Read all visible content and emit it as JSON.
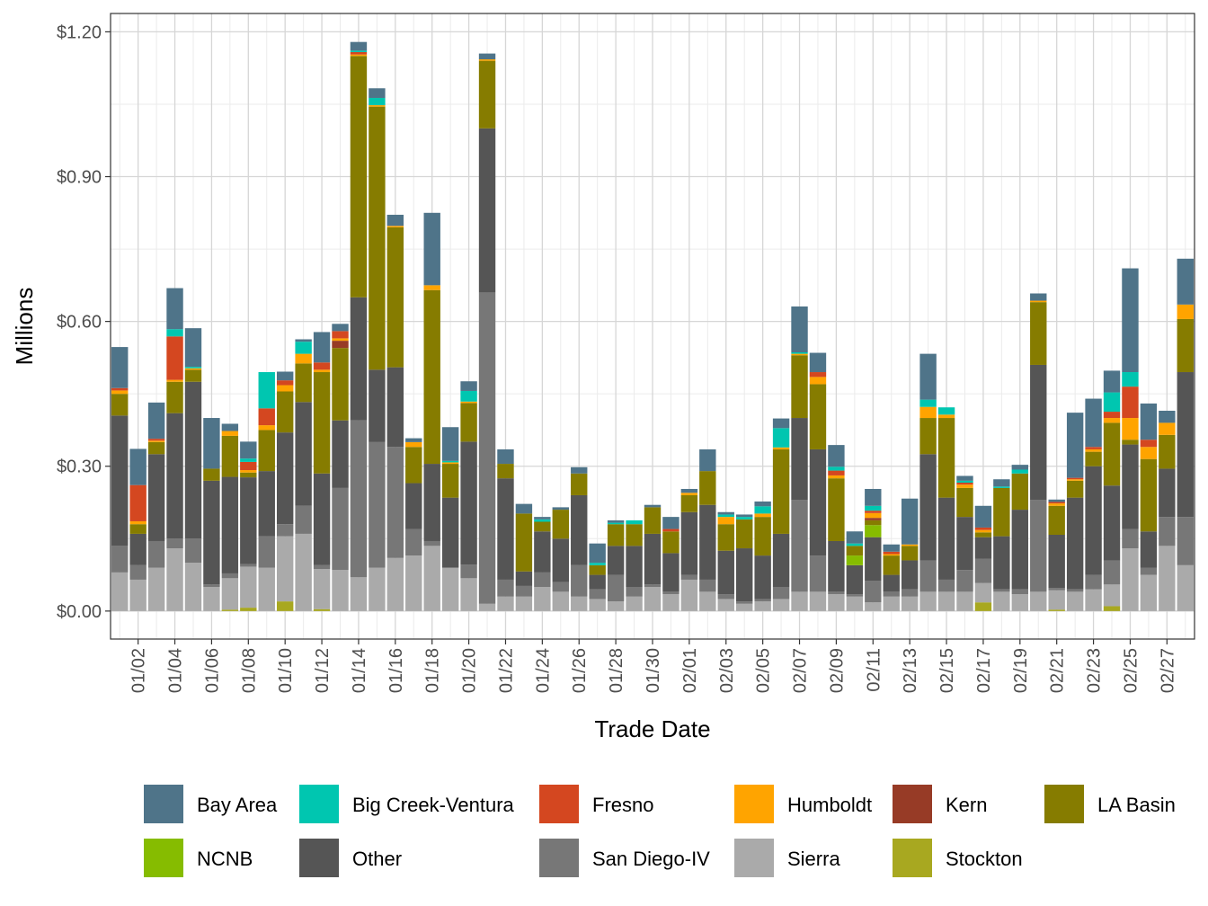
{
  "chart_data": {
    "type": "bar",
    "stacked": true,
    "title": "",
    "xlabel": "Trade Date",
    "ylabel": "Millions",
    "ylim": [
      -0.058,
      1.238
    ],
    "y_ticks": [
      0.0,
      0.3,
      0.6,
      0.9,
      1.2
    ],
    "y_tick_labels": [
      "$0.00",
      "$0.30",
      "$0.60",
      "$0.90",
      "$1.20"
    ],
    "x_tick_labels": [
      "01/02",
      "01/04",
      "01/06",
      "01/08",
      "01/10",
      "01/12",
      "01/14",
      "01/16",
      "01/18",
      "01/20",
      "01/22",
      "01/24",
      "01/26",
      "01/28",
      "01/30",
      "02/01",
      "02/03",
      "02/05",
      "02/07",
      "02/09",
      "02/11",
      "02/13",
      "02/15",
      "02/17",
      "02/19",
      "02/21",
      "02/23",
      "02/25",
      "02/27"
    ],
    "grid": true,
    "legend_position": "bottom",
    "categories": [
      "01/01",
      "01/02",
      "01/03",
      "01/04",
      "01/05",
      "01/06",
      "01/07",
      "01/08",
      "01/09",
      "01/10",
      "01/11",
      "01/12",
      "01/13",
      "01/14",
      "01/15",
      "01/16",
      "01/17",
      "01/18",
      "01/19",
      "01/20",
      "01/21",
      "01/22",
      "01/23",
      "01/24",
      "01/25",
      "01/26",
      "01/27",
      "01/28",
      "01/29",
      "01/30",
      "01/31",
      "02/01",
      "02/02",
      "02/03",
      "02/04",
      "02/05",
      "02/06",
      "02/07",
      "02/08",
      "02/09",
      "02/10",
      "02/11",
      "02/12",
      "02/13",
      "02/14",
      "02/15",
      "02/16",
      "02/17",
      "02/18",
      "02/19",
      "02/20",
      "02/21",
      "02/22",
      "02/23",
      "02/24",
      "02/25",
      "02/26",
      "02/27",
      "02/28"
    ],
    "series": [
      {
        "name": "Stockton",
        "color": "#A8A820",
        "values": [
          0,
          0,
          0,
          0,
          0,
          0,
          0.003,
          0.007,
          0,
          0.02,
          0,
          0.004,
          0,
          0,
          0,
          0,
          0,
          0,
          0,
          0,
          0,
          0,
          0,
          0,
          0,
          0,
          0,
          0,
          0,
          0,
          0,
          0,
          0,
          0,
          0,
          0,
          0,
          0,
          0,
          0,
          0,
          0,
          0,
          0,
          0,
          0,
          0,
          0.018,
          0,
          0,
          0,
          0.003,
          0,
          0,
          0.01,
          0,
          0,
          0,
          0
        ]
      },
      {
        "name": "Sierra",
        "color": "#AAAAAA",
        "values": [
          0.08,
          0.065,
          0.09,
          0.13,
          0.1,
          0.05,
          0.065,
          0.085,
          0.09,
          0.135,
          0.16,
          0.083,
          0.085,
          0.07,
          0.09,
          0.11,
          0.115,
          0.135,
          0.09,
          0.068,
          0.015,
          0.03,
          0.03,
          0.05,
          0.04,
          0.03,
          0.025,
          0.02,
          0.03,
          0.05,
          0.035,
          0.065,
          0.04,
          0.025,
          0.015,
          0.02,
          0.025,
          0.04,
          0.04,
          0.035,
          0.03,
          0.018,
          0.03,
          0.03,
          0.04,
          0.04,
          0.04,
          0.04,
          0.04,
          0.035,
          0.04,
          0.04,
          0.04,
          0.045,
          0.045,
          0.13,
          0.075,
          0.135,
          0.095
        ]
      },
      {
        "name": "San Diego-IV",
        "color": "#777777",
        "values": [
          0.055,
          0.03,
          0.055,
          0.02,
          0.05,
          0.005,
          0.01,
          0.005,
          0.065,
          0.025,
          0.058,
          0.008,
          0.17,
          0.325,
          0.26,
          0.23,
          0.055,
          0.01,
          0,
          0.028,
          0.645,
          0.035,
          0.022,
          0.03,
          0.02,
          0.065,
          0.02,
          0.055,
          0.02,
          0.005,
          0.005,
          0.01,
          0.025,
          0.01,
          0.005,
          0.005,
          0.025,
          0.19,
          0.075,
          0.005,
          0.005,
          0.045,
          0.01,
          0.015,
          0.065,
          0.025,
          0.045,
          0.05,
          0.005,
          0.01,
          0.19,
          0.005,
          0.005,
          0.03,
          0.05,
          0.04,
          0.015,
          0.06,
          0.1
        ]
      },
      {
        "name": "Other",
        "color": "#555555",
        "values": [
          0.27,
          0.065,
          0.18,
          0.26,
          0.325,
          0.215,
          0.2,
          0.18,
          0.135,
          0.19,
          0.215,
          0.19,
          0.14,
          0.255,
          0.15,
          0.165,
          0.095,
          0.16,
          0.145,
          0.255,
          0.34,
          0.21,
          0.03,
          0.085,
          0.09,
          0.145,
          0.03,
          0.06,
          0.085,
          0.105,
          0.08,
          0.13,
          0.155,
          0.09,
          0.11,
          0.09,
          0.11,
          0.17,
          0.22,
          0.105,
          0.06,
          0.09,
          0.035,
          0.06,
          0.22,
          0.17,
          0.11,
          0.045,
          0.11,
          0.165,
          0.28,
          0.11,
          0.19,
          0.225,
          0.155,
          0.175,
          0.075,
          0.1,
          0.3
        ]
      },
      {
        "name": "NCNB",
        "color": "#86BC00",
        "values": [
          0,
          0,
          0,
          0,
          0,
          0,
          0,
          0,
          0,
          0,
          0,
          0,
          0,
          0,
          0,
          0,
          0,
          0,
          0,
          0,
          0,
          0,
          0,
          0,
          0,
          0,
          0,
          0,
          0,
          0,
          0,
          0,
          0,
          0,
          0,
          0,
          0,
          0,
          0,
          0,
          0.02,
          0.025,
          0,
          0,
          0,
          0,
          0,
          0,
          0,
          0,
          0,
          0,
          0,
          0,
          0,
          0,
          0,
          0,
          0
        ]
      },
      {
        "name": "LA Basin",
        "color": "#867C00",
        "values": [
          0.045,
          0.02,
          0.025,
          0.065,
          0.025,
          0.025,
          0.085,
          0.01,
          0.085,
          0.085,
          0.08,
          0.21,
          0.15,
          0.5,
          0.545,
          0.29,
          0.075,
          0.36,
          0.07,
          0.08,
          0.14,
          0.03,
          0.12,
          0.02,
          0.06,
          0.045,
          0.02,
          0.045,
          0.045,
          0.055,
          0.045,
          0.035,
          0.07,
          0.055,
          0.06,
          0.08,
          0.175,
          0.13,
          0.135,
          0.13,
          0.02,
          0.01,
          0.04,
          0.03,
          0.075,
          0.165,
          0.06,
          0.01,
          0.1,
          0.075,
          0.13,
          0.06,
          0.035,
          0.03,
          0.13,
          0.01,
          0.15,
          0.07,
          0.11
        ]
      },
      {
        "name": "Kern",
        "color": "#973B26",
        "values": [
          0,
          0,
          0,
          0,
          0,
          0,
          0,
          0,
          0,
          0,
          0,
          0,
          0.015,
          0,
          0,
          0,
          0,
          0,
          0,
          0,
          0,
          0,
          0,
          0,
          0,
          0,
          0,
          0,
          0,
          0,
          0,
          0,
          0,
          0,
          0,
          0,
          0,
          0,
          0,
          0,
          0,
          0.005,
          0,
          0,
          0,
          0,
          0,
          0,
          0,
          0,
          0,
          0,
          0,
          0,
          0,
          0,
          0,
          0,
          0
        ]
      },
      {
        "name": "Humboldt",
        "color": "#FFA400",
        "values": [
          0.007,
          0.006,
          0.003,
          0.004,
          0.003,
          0,
          0.01,
          0.005,
          0.01,
          0.013,
          0.02,
          0.005,
          0.005,
          0.003,
          0.003,
          0.003,
          0.01,
          0.01,
          0.003,
          0.003,
          0.003,
          0,
          0,
          0,
          0,
          0,
          0,
          0,
          0,
          0,
          0,
          0.005,
          0,
          0.015,
          0,
          0.007,
          0.004,
          0.003,
          0.015,
          0.006,
          0,
          0.01,
          0.003,
          0.003,
          0.023,
          0.007,
          0.007,
          0.005,
          0,
          0,
          0.003,
          0.005,
          0.003,
          0.005,
          0.01,
          0.045,
          0.025,
          0.025,
          0.03
        ]
      },
      {
        "name": "Fresno",
        "color": "#D44720",
        "values": [
          0.005,
          0.075,
          0.004,
          0.09,
          0,
          0,
          0,
          0.017,
          0.035,
          0.01,
          0,
          0.015,
          0.015,
          0.005,
          0,
          0,
          0,
          0,
          0,
          0,
          0,
          0,
          0,
          0,
          0,
          0,
          0,
          0,
          0,
          0,
          0.005,
          0,
          0,
          0,
          0,
          0,
          0,
          0,
          0.01,
          0.01,
          0,
          0.005,
          0.005,
          0,
          0,
          0,
          0.004,
          0.005,
          0,
          0,
          0,
          0.003,
          0.003,
          0.005,
          0.013,
          0.065,
          0.015,
          0,
          0
        ]
      },
      {
        "name": "Big Creek-Ventura",
        "color": "#00C6B0",
        "values": [
          0,
          0,
          0,
          0.015,
          0.003,
          0,
          0,
          0.007,
          0.075,
          0,
          0.025,
          0,
          0,
          0.003,
          0.015,
          0,
          0,
          0,
          0.003,
          0.022,
          0,
          0,
          0,
          0.005,
          0,
          0,
          0.005,
          0.003,
          0.008,
          0,
          0,
          0,
          0,
          0.005,
          0.005,
          0.015,
          0.04,
          0.003,
          0,
          0.008,
          0.005,
          0.01,
          0,
          0,
          0.015,
          0.015,
          0.004,
          0,
          0.003,
          0.008,
          0,
          0,
          0,
          0,
          0.04,
          0.03,
          0,
          0,
          0
        ]
      },
      {
        "name": "Bay Area",
        "color": "#4F7489",
        "values": [
          0.085,
          0.075,
          0.075,
          0.085,
          0.08,
          0.105,
          0.015,
          0.035,
          0,
          0.018,
          0.005,
          0.063,
          0.015,
          0.018,
          0.02,
          0.023,
          0.008,
          0.15,
          0.07,
          0.02,
          0.012,
          0.03,
          0.02,
          0.005,
          0.005,
          0.013,
          0.04,
          0.005,
          0,
          0.005,
          0.025,
          0.008,
          0.045,
          0.005,
          0.005,
          0.01,
          0.02,
          0.095,
          0.04,
          0.045,
          0.025,
          0.035,
          0.015,
          0.095,
          0.095,
          0,
          0.01,
          0.045,
          0.015,
          0.01,
          0.015,
          0.005,
          0.135,
          0.1,
          0.045,
          0.215,
          0.075,
          0.025,
          0.095
        ]
      }
    ],
    "legend_order": [
      "Bay Area",
      "Big Creek-Ventura",
      "Fresno",
      "Humboldt",
      "Kern",
      "LA Basin",
      "NCNB",
      "Other",
      "San Diego-IV",
      "Sierra",
      "Stockton"
    ]
  }
}
